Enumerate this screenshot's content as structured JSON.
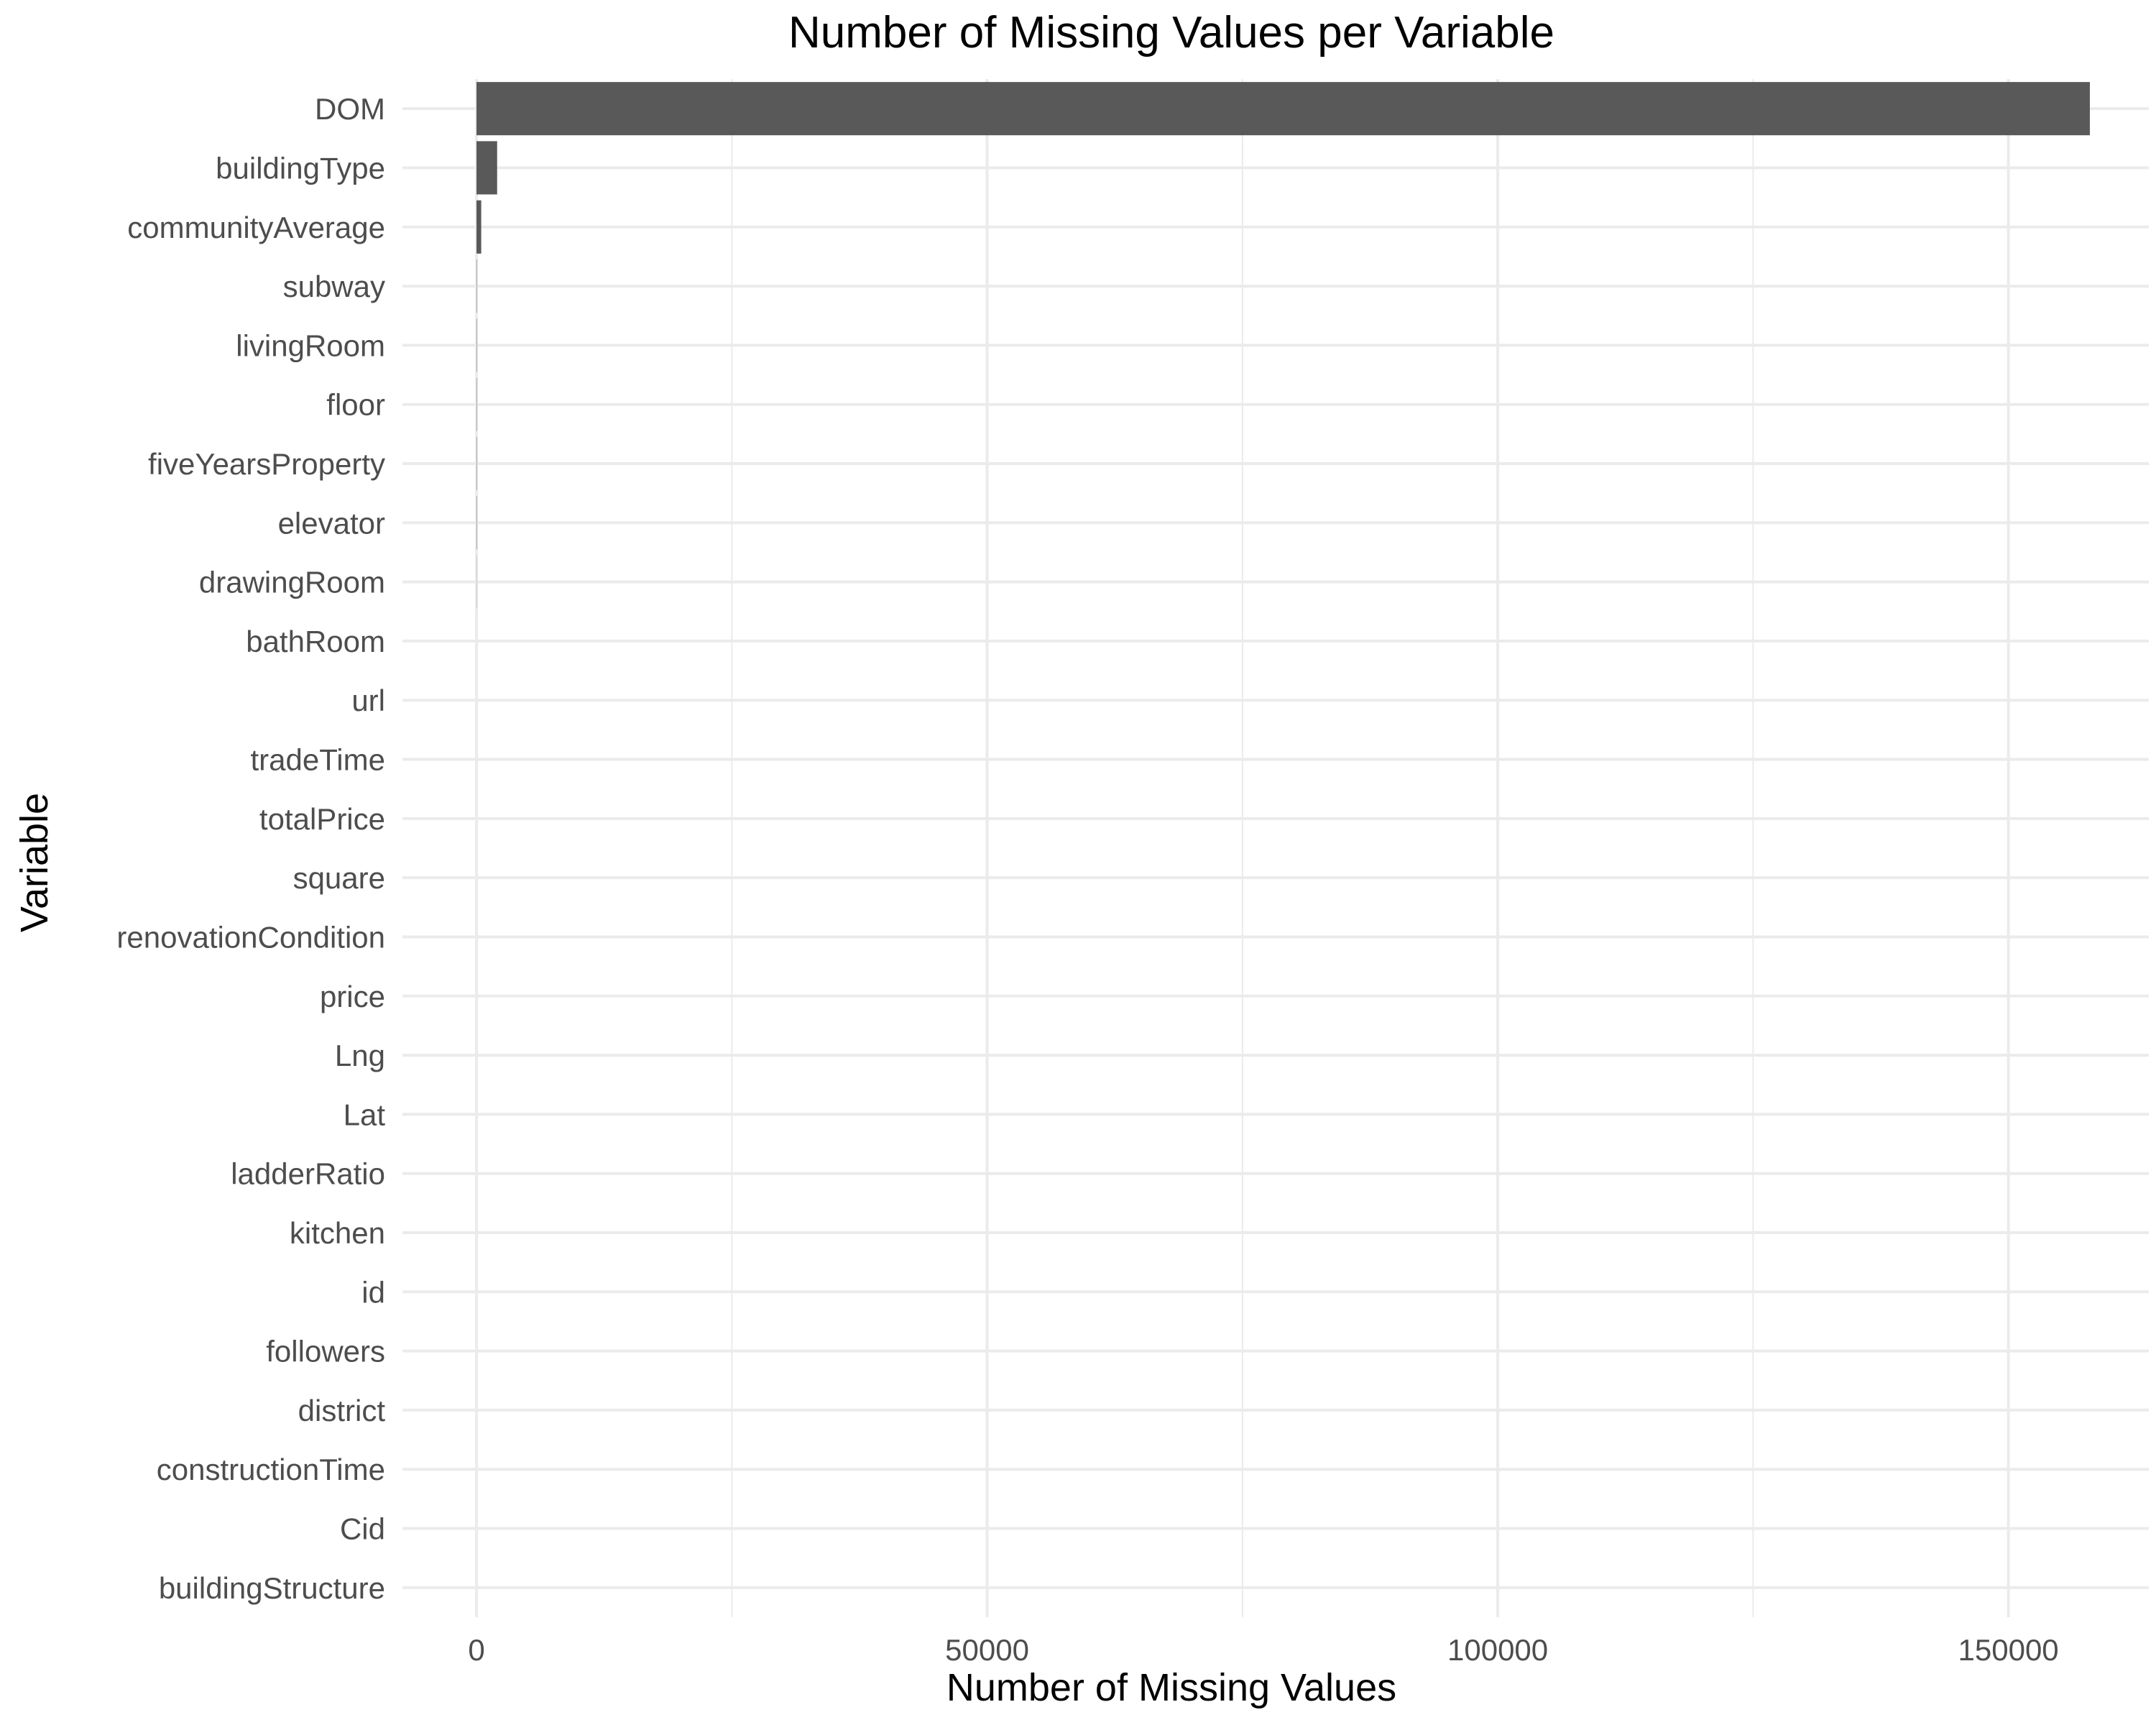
{
  "chart_data": {
    "type": "bar",
    "orientation": "horizontal",
    "title": "Number of Missing Values per Variable",
    "xlabel": "Number of Missing Values",
    "ylabel": "Variable",
    "xlim": [
      -7250,
      163750
    ],
    "xticks": [
      0,
      50000,
      100000,
      150000
    ],
    "xtick_labels": [
      "0",
      "50000",
      "100000",
      "150000"
    ],
    "grid": true,
    "legend": "none",
    "bar_color": "#595959",
    "categories": [
      "DOM",
      "buildingType",
      "communityAverage",
      "subway",
      "livingRoom",
      "floor",
      "fiveYearsProperty",
      "elevator",
      "drawingRoom",
      "bathRoom",
      "url",
      "tradeTime",
      "totalPrice",
      "square",
      "renovationCondition",
      "price",
      "Lng",
      "Lat",
      "ladderRatio",
      "kitchen",
      "id",
      "followers",
      "district",
      "constructionTime",
      "Cid",
      "buildingStructure"
    ],
    "values": [
      157977,
      2021,
      463,
      32,
      32,
      32,
      32,
      32,
      16,
      0,
      0,
      0,
      0,
      0,
      0,
      0,
      0,
      0,
      0,
      0,
      0,
      0,
      0,
      0,
      0,
      0
    ]
  }
}
